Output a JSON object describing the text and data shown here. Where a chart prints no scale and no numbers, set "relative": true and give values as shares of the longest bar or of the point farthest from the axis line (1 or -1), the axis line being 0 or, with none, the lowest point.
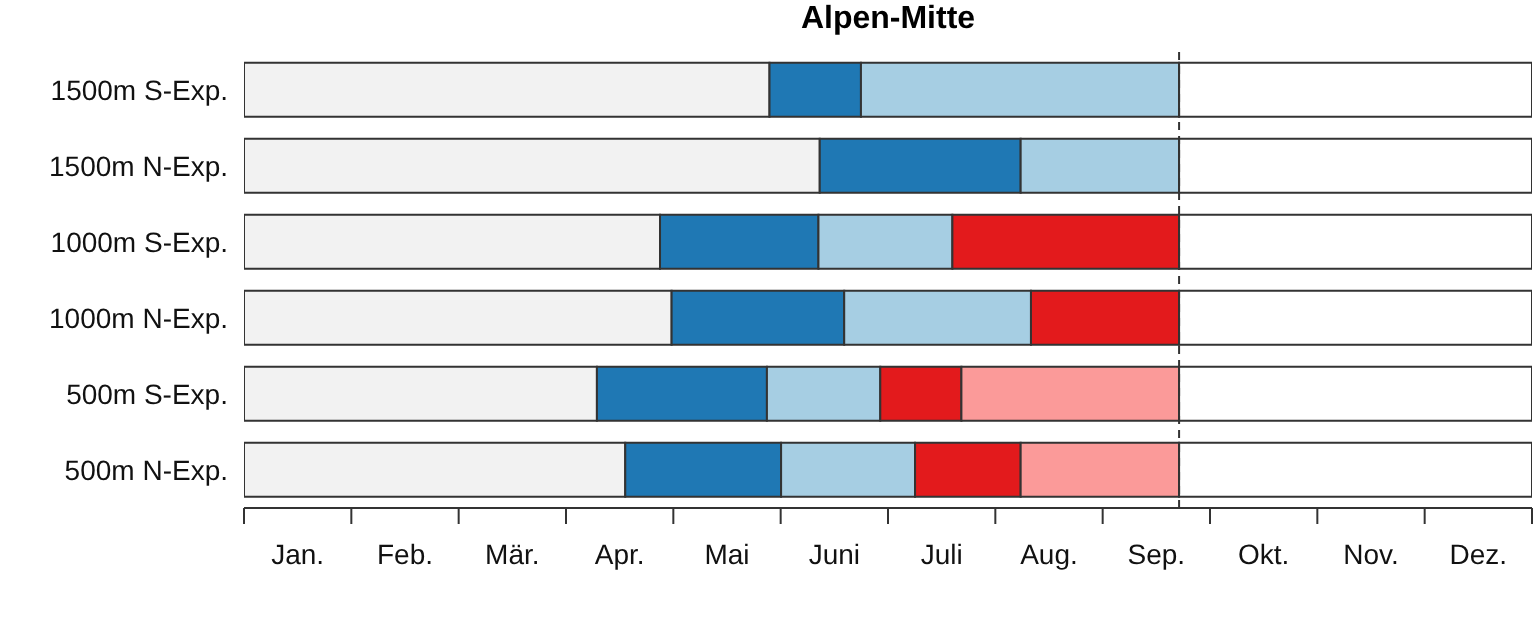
{
  "chart_data": {
    "type": "bar",
    "orientation": "horizontal",
    "stacked": true,
    "relative": true,
    "title": "Alpen-Mitte",
    "categories": [
      "1500m S-Exp.",
      "1500m N-Exp.",
      "1000m S-Exp.",
      "1000m N-Exp.",
      "500m S-Exp.",
      "500m N-Exp."
    ],
    "series": [
      {
        "color": "#f2f2f2",
        "values": [
          0.408,
          0.447,
          0.323,
          0.332,
          0.274,
          0.296
        ]
      },
      {
        "color": "#1f78b4",
        "values": [
          0.071,
          0.156,
          0.123,
          0.134,
          0.132,
          0.121
        ]
      },
      {
        "color": "#a6cee3",
        "values": [
          0.247,
          0.123,
          0.104,
          0.145,
          0.088,
          0.104
        ]
      },
      {
        "color": "#e31a1c",
        "values": [
          null,
          null,
          0.176,
          0.115,
          0.063,
          0.082
        ]
      },
      {
        "color": "#fb9a99",
        "values": [
          null,
          null,
          null,
          null,
          0.169,
          0.123
        ]
      },
      {
        "color": "#ffffff",
        "values": [
          0.274,
          0.274,
          0.274,
          0.274,
          0.274,
          0.274
        ]
      }
    ],
    "annotations": [
      "Jan.",
      "Feb.",
      "Mär.",
      "Apr.",
      "Mai",
      "Juni",
      "Juli",
      "Aug.",
      "Sep.",
      "Okt.",
      "Nov.",
      "Dez."
    ],
    "ref_lines": [
      {
        "axis": "x",
        "value": 0.726,
        "color": "#333333",
        "line_style": "dashed"
      }
    ]
  }
}
